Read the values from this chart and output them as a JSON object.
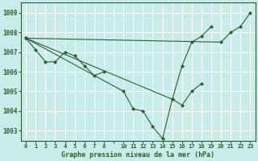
{
  "title": "Graphe pression niveau de la mer (hPa)",
  "bg_color": "#c8ece9",
  "grid_color": "#ffffff",
  "line_color": "#2d5e2d",
  "marker_color": "#2d5e2d",
  "ylim": [
    1002.5,
    1009.5
  ],
  "yticks": [
    1003,
    1004,
    1005,
    1006,
    1007,
    1008,
    1009
  ],
  "xtick_positions": [
    0,
    1,
    2,
    3,
    4,
    5,
    6,
    7,
    8,
    9,
    10,
    11,
    12,
    13,
    14,
    15,
    16,
    17,
    18,
    19,
    20,
    21,
    22,
    23
  ],
  "xtick_labels": [
    "0",
    "1",
    "2",
    "3",
    "4",
    "5",
    "6",
    "7",
    "8",
    "",
    "10",
    "11",
    "12",
    "13",
    "14",
    "15",
    "16",
    "17",
    "18",
    "19",
    "20",
    "21",
    "22",
    "23"
  ],
  "series": [
    {
      "x": [
        0,
        1,
        2,
        3,
        4,
        5,
        6,
        7,
        8
      ],
      "y": [
        1007.7,
        1007.1,
        1006.5,
        1006.5,
        1007.0,
        1006.8,
        1006.3,
        1005.8,
        1006.0
      ]
    },
    {
      "x": [
        0,
        10,
        11,
        12,
        13,
        14,
        15,
        16,
        17,
        18
      ],
      "y": [
        1007.7,
        1005.0,
        1004.1,
        1004.0,
        1003.2,
        1002.6,
        1004.6,
        1004.3,
        1005.0,
        1005.4
      ]
    },
    {
      "x": [
        0,
        15,
        16,
        17,
        18,
        19
      ],
      "y": [
        1007.7,
        1004.6,
        1006.3,
        1007.5,
        1007.8,
        1008.3
      ]
    },
    {
      "x": [
        0,
        20,
        21,
        22,
        23
      ],
      "y": [
        1007.7,
        1007.5,
        1008.0,
        1008.3,
        1009.0
      ]
    }
  ]
}
